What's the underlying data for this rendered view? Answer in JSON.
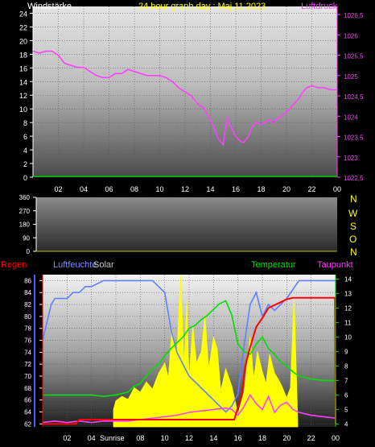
{
  "header": {
    "left_label": "Windstärke",
    "title": "24 hour graph day : Maj 11 2023",
    "right_label": "Luftdruck"
  },
  "bottom_header": {
    "rain_label": "Regen",
    "humidity_label": "Luftfeuchte",
    "solar_label": "Solar",
    "temp_label": "Temperatur",
    "dew_label": "Taupunkt",
    "sunrise_label": "Sunrise"
  },
  "compass": [
    "N",
    "W",
    "S",
    "O",
    "N"
  ],
  "colors": {
    "wind_axis": "#ffffff",
    "pressure": "#ff40ff",
    "title": "#ffff00",
    "rain": "#ff0000",
    "humidity": "#6080ff",
    "solar": "#ffff00",
    "temperature": "#00e000",
    "dewpoint": "#ff40ff",
    "wind_line": "#00c000"
  },
  "chart_data": [
    {
      "type": "line",
      "x_ticks": [
        "02",
        "04",
        "06",
        "08",
        "10",
        "12",
        "14",
        "16",
        "18",
        "20",
        "22",
        "00"
      ],
      "y_left_ticks": [
        "0",
        "2",
        "4",
        "6",
        "8",
        "10",
        "12",
        "14",
        "16",
        "18",
        "20",
        "22",
        "24"
      ],
      "y_right_ticks": [
        "1022,5",
        "1023",
        "1023,5",
        "1024",
        "1024,5",
        "1025",
        "1025,5",
        "1026",
        "1026,5"
      ],
      "ylim_left": [
        0,
        25
      ],
      "ylim_right": [
        1022.5,
        1026.7
      ],
      "series": [
        {
          "name": "Luftdruck",
          "axis": "right",
          "x": [
            0,
            0.5,
            1,
            1.5,
            2,
            2.5,
            3,
            3.5,
            4,
            4.5,
            5,
            5.5,
            6,
            6.5,
            7,
            7.5,
            8,
            8.5,
            9,
            9.5,
            10,
            10.5,
            11,
            11.5,
            12,
            12.5,
            13,
            13.5,
            14,
            14.3,
            14.6,
            15,
            15.3,
            15.6,
            16,
            16.3,
            16.6,
            17,
            17.3,
            17.6,
            18,
            18.3,
            18.6,
            19,
            19.3,
            19.6,
            20,
            20.3,
            20.6,
            21,
            21.3,
            21.6,
            22,
            22.5,
            23,
            23.5,
            24
          ],
          "values": [
            1025.6,
            1025.55,
            1025.6,
            1025.6,
            1025.5,
            1025.3,
            1025.25,
            1025.2,
            1025.2,
            1025.1,
            1025.0,
            1024.95,
            1024.95,
            1025.05,
            1025.05,
            1025.15,
            1025.1,
            1025.05,
            1025.0,
            1025.0,
            1025.0,
            1024.95,
            1024.85,
            1024.7,
            1024.6,
            1024.5,
            1024.3,
            1024.2,
            1023.9,
            1023.7,
            1023.45,
            1023.3,
            1023.95,
            1023.75,
            1023.5,
            1023.4,
            1023.35,
            1023.5,
            1023.75,
            1023.85,
            1023.8,
            1023.85,
            1023.9,
            1023.85,
            1023.95,
            1024.0,
            1024.1,
            1024.2,
            1024.3,
            1024.45,
            1024.6,
            1024.7,
            1024.75,
            1024.7,
            1024.7,
            1024.65,
            1024.65
          ]
        },
        {
          "name": "Windstärke",
          "axis": "left",
          "x": [
            0,
            24
          ],
          "values": [
            0.1,
            0.1
          ]
        }
      ]
    },
    {
      "type": "line",
      "y_ticks": [
        "0",
        "90",
        "180",
        "270",
        "360"
      ],
      "ylim": [
        0,
        360
      ],
      "series": []
    },
    {
      "type": "line",
      "x_ticks": [
        "02",
        "04",
        "06",
        "08",
        "10",
        "12",
        "14",
        "16",
        "18",
        "20",
        "22",
        "00"
      ],
      "y_left_ticks": [
        "62",
        "64",
        "66",
        "68",
        "70",
        "72",
        "74",
        "76",
        "78",
        "80",
        "82",
        "84",
        "86"
      ],
      "y_right_ticks": [
        "4",
        "5",
        "6",
        "7",
        "8",
        "9",
        "10",
        "11",
        "12",
        "13",
        "14"
      ],
      "ylim_left": [
        61.5,
        87
      ],
      "ylim_right": [
        3.8,
        14.3
      ],
      "series": [
        {
          "name": "Luftfeuchte",
          "axis": "left",
          "x": [
            0,
            0.7,
            1,
            2,
            2.5,
            3,
            3.5,
            4,
            5,
            6,
            7,
            8,
            9,
            10,
            10.5,
            11,
            11.5,
            12,
            13,
            14,
            15,
            15.5,
            16,
            16.5,
            17,
            17.5,
            18,
            18.5,
            19,
            20,
            21,
            22,
            23,
            24
          ],
          "values": [
            76,
            82,
            83,
            83,
            84,
            84,
            85,
            85,
            86,
            86,
            86,
            86,
            86,
            84,
            78,
            74,
            72,
            70,
            68,
            66,
            64,
            65,
            67,
            75,
            82,
            84,
            80,
            82,
            81,
            83,
            86,
            86,
            86,
            86
          ]
        },
        {
          "name": "Temperatur",
          "axis": "right",
          "x": [
            0,
            1,
            2,
            3,
            4,
            5,
            6,
            7,
            7.5,
            8,
            8.5,
            9,
            9.5,
            10,
            10.5,
            11,
            11.5,
            12,
            12.5,
            13,
            13.5,
            14,
            14.5,
            15,
            15.5,
            16,
            16.5,
            17,
            17.5,
            18,
            18.5,
            19,
            19.5,
            20,
            20.5,
            21,
            22,
            23,
            24
          ],
          "values": [
            6.0,
            6.0,
            6.0,
            6.0,
            6.0,
            5.9,
            6.0,
            6.2,
            6.6,
            6.8,
            7.3,
            7.8,
            8.1,
            8.7,
            9.2,
            9.6,
            10.0,
            10.6,
            10.8,
            11.2,
            11.5,
            11.9,
            12.3,
            12.5,
            11.5,
            9.5,
            9.0,
            8.8,
            9.5,
            10.0,
            9.2,
            8.8,
            8.3,
            8.0,
            7.6,
            7.3,
            7.1,
            7.0,
            7.0
          ]
        },
        {
          "name": "Taupunkt",
          "axis": "right",
          "x": [
            0,
            1,
            2,
            3,
            4,
            5,
            6,
            7,
            8,
            9,
            10,
            11,
            12,
            13,
            14,
            15,
            15.5,
            16,
            16.5,
            17,
            17.5,
            18,
            18.5,
            19,
            19.5,
            20,
            20.5,
            21,
            22,
            23,
            24
          ],
          "values": [
            4.1,
            4.2,
            4.1,
            4.2,
            4.1,
            4.2,
            4.2,
            4.2,
            4.3,
            4.4,
            4.5,
            4.6,
            4.8,
            4.9,
            5.0,
            5.1,
            5.0,
            4.6,
            5.2,
            6.0,
            5.4,
            5.0,
            5.9,
            4.8,
            5.3,
            5.5,
            5.0,
            4.8,
            4.6,
            4.5,
            4.4
          ]
        },
        {
          "name": "Regen",
          "axis": "right",
          "x": [
            0,
            2.7,
            3.0,
            5.0,
            5.8,
            15.7,
            16.3,
            16.6,
            17.0,
            17.5,
            18.0,
            18.5,
            19.0,
            19.5,
            20.0,
            20.5,
            21.0,
            21.5,
            22.0,
            23.0,
            23.95,
            24
          ],
          "values": [
            4.0,
            4.0,
            4.3,
            4.3,
            4.3,
            4.3,
            6.0,
            8.0,
            9.3,
            10.7,
            11.3,
            12.0,
            12.2,
            12.4,
            12.6,
            12.7,
            12.7,
            12.7,
            12.7,
            12.7,
            12.7,
            4.0
          ]
        },
        {
          "name": "Solar",
          "axis": "right",
          "x": [
            5.8,
            6.0,
            6.5,
            7.0,
            7.5,
            8.0,
            8.5,
            9.0,
            9.5,
            10.0,
            10.3,
            10.6,
            11.0,
            11.3,
            11.6,
            11.8,
            12.0,
            12.3,
            12.6,
            13.0,
            13.3,
            13.6,
            14.0,
            14.3,
            14.6,
            15.0,
            15.5,
            16.0,
            16.5,
            16.8,
            17.0,
            17.3,
            17.6,
            18.0,
            18.3,
            18.6,
            19.0,
            19.3,
            19.6,
            20.0,
            20.3,
            20.6,
            20.9
          ],
          "values": [
            5.0,
            5.6,
            5.9,
            5.7,
            6.5,
            6.2,
            6.9,
            6.4,
            7.5,
            8.2,
            7.2,
            10.5,
            8.8,
            14.2,
            8.0,
            12.5,
            7.2,
            10.8,
            8.2,
            9.0,
            11.5,
            7.8,
            10.0,
            9.2,
            6.3,
            7.8,
            6.6,
            4.7,
            6.2,
            8.4,
            10.0,
            7.1,
            9.0,
            7.6,
            6.8,
            8.8,
            7.5,
            7.1,
            6.6,
            5.8,
            6.5,
            12.8,
            4.2
          ]
        }
      ]
    }
  ]
}
